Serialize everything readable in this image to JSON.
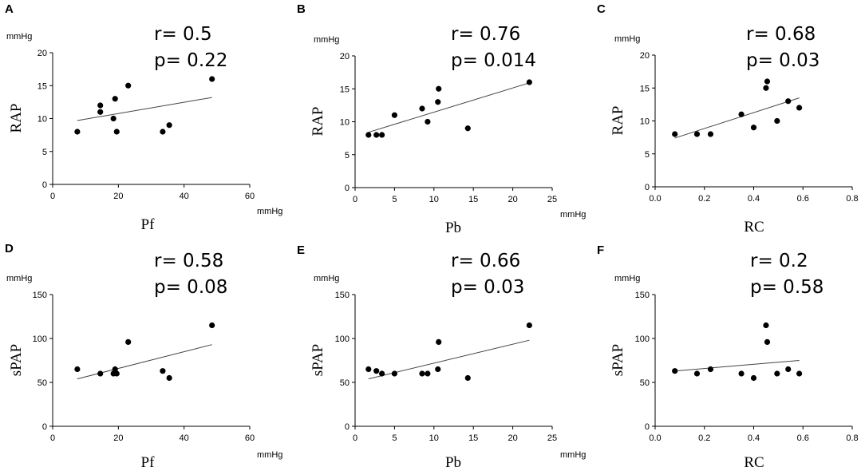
{
  "chart_data": [
    {
      "type": "scatter",
      "panel": "A",
      "yunit": "mmHg",
      "xunit": "mmHg",
      "ylabel": "RAP",
      "xlabel": "Pf",
      "r_text": "r= 0.5",
      "p_text": "p= 0.22",
      "xlim": [
        0,
        60
      ],
      "ylim": [
        0,
        20
      ],
      "xticks": [
        0,
        20,
        40,
        60
      ],
      "yticks": [
        0,
        5,
        10,
        15,
        20
      ],
      "xtick_labels": [
        "0",
        "20",
        "40",
        "60"
      ],
      "ytick_labels": [
        "0",
        "5",
        "10",
        "15",
        "20"
      ],
      "points": [
        [
          7.5,
          8
        ],
        [
          14.5,
          12
        ],
        [
          14.5,
          11
        ],
        [
          18.5,
          10
        ],
        [
          19,
          13
        ],
        [
          19.5,
          8
        ],
        [
          23,
          15
        ],
        [
          33.5,
          8
        ],
        [
          35.5,
          9
        ],
        [
          48.5,
          16
        ]
      ],
      "fit": [
        [
          7.5,
          9.7
        ],
        [
          48.5,
          13.2
        ]
      ]
    },
    {
      "type": "scatter",
      "panel": "B",
      "yunit": "mmHg",
      "xunit": "mmHg",
      "ylabel": "RAP",
      "xlabel": "Pb",
      "r_text": "r= 0.76",
      "p_text": "p= 0.014",
      "xlim": [
        0,
        25
      ],
      "ylim": [
        0,
        20
      ],
      "xticks": [
        0,
        5,
        10,
        15,
        20,
        25
      ],
      "yticks": [
        0,
        5,
        10,
        15,
        20
      ],
      "xtick_labels": [
        "0",
        "5",
        "10",
        "15",
        "20",
        "25"
      ],
      "ytick_labels": [
        "0",
        "5",
        "10",
        "15",
        "20"
      ],
      "points": [
        [
          1.7,
          8
        ],
        [
          2.7,
          8
        ],
        [
          3.4,
          8
        ],
        [
          5,
          11
        ],
        [
          8.5,
          12
        ],
        [
          9.2,
          10
        ],
        [
          10.5,
          13
        ],
        [
          10.6,
          15
        ],
        [
          14.3,
          9
        ],
        [
          22.1,
          16
        ]
      ],
      "fit": [
        [
          1.7,
          8.4
        ],
        [
          22.1,
          15.9
        ]
      ]
    },
    {
      "type": "scatter",
      "panel": "C",
      "yunit": "mmHg",
      "xunit": "",
      "ylabel": "RAP",
      "xlabel": "RC",
      "r_text": "r= 0.68",
      "p_text": "p= 0.03",
      "xlim": [
        0,
        0.8
      ],
      "ylim": [
        0,
        20
      ],
      "xticks": [
        0,
        0.2,
        0.4,
        0.6,
        0.8
      ],
      "yticks": [
        0,
        5,
        10,
        15,
        20
      ],
      "xtick_labels": [
        "0.0",
        "0.2",
        "0.4",
        "0.6",
        "0.8"
      ],
      "ytick_labels": [
        "0",
        "5",
        "10",
        "15",
        "20"
      ],
      "points": [
        [
          0.08,
          8
        ],
        [
          0.17,
          8
        ],
        [
          0.225,
          8
        ],
        [
          0.35,
          11
        ],
        [
          0.4,
          9
        ],
        [
          0.45,
          15
        ],
        [
          0.455,
          16
        ],
        [
          0.495,
          10
        ],
        [
          0.54,
          13
        ],
        [
          0.585,
          12
        ]
      ],
      "fit": [
        [
          0.08,
          7.4
        ],
        [
          0.585,
          13.5
        ]
      ]
    },
    {
      "type": "scatter",
      "panel": "D",
      "yunit": "mmHg",
      "xunit": "mmHg",
      "ylabel": "sPAP",
      "xlabel": "Pf",
      "r_text": "r= 0.58",
      "p_text": "p= 0.08",
      "xlim": [
        0,
        60
      ],
      "ylim": [
        0,
        150
      ],
      "xticks": [
        0,
        20,
        40,
        60
      ],
      "yticks": [
        0,
        50,
        100,
        150
      ],
      "xtick_labels": [
        "0",
        "20",
        "40",
        "60"
      ],
      "ytick_labels": [
        "0",
        "50",
        "100",
        "150"
      ],
      "points": [
        [
          7.5,
          65
        ],
        [
          14.5,
          60
        ],
        [
          18.5,
          60
        ],
        [
          19,
          65
        ],
        [
          19.5,
          60
        ],
        [
          23,
          96
        ],
        [
          33.5,
          63
        ],
        [
          35.5,
          55
        ],
        [
          48.5,
          115
        ]
      ],
      "fit": [
        [
          7.5,
          54
        ],
        [
          48.5,
          93
        ]
      ]
    },
    {
      "type": "scatter",
      "panel": "E",
      "yunit": "mmHg",
      "xunit": "mmHg",
      "ylabel": "sPAP",
      "xlabel": "Pb",
      "r_text": "r= 0.66",
      "p_text": "p= 0.03",
      "xlim": [
        0,
        25
      ],
      "ylim": [
        0,
        150
      ],
      "xticks": [
        0,
        5,
        10,
        15,
        20,
        25
      ],
      "yticks": [
        0,
        50,
        100,
        150
      ],
      "xtick_labels": [
        "0",
        "5",
        "10",
        "15",
        "20",
        "25"
      ],
      "ytick_labels": [
        "0",
        "50",
        "100",
        "150"
      ],
      "points": [
        [
          1.7,
          65
        ],
        [
          2.7,
          63
        ],
        [
          3.4,
          60
        ],
        [
          5,
          60
        ],
        [
          8.5,
          60
        ],
        [
          9.2,
          60
        ],
        [
          10.5,
          65
        ],
        [
          10.6,
          96
        ],
        [
          14.3,
          55
        ],
        [
          22.1,
          115
        ]
      ],
      "fit": [
        [
          1.7,
          54
        ],
        [
          22.1,
          98
        ]
      ]
    },
    {
      "type": "scatter",
      "panel": "F",
      "yunit": "mmHg",
      "xunit": "",
      "ylabel": "sPAP",
      "xlabel": "RC",
      "r_text": "r= 0.2",
      "p_text": "p= 0.58",
      "xlim": [
        0,
        0.8
      ],
      "ylim": [
        0,
        150
      ],
      "xticks": [
        0,
        0.2,
        0.4,
        0.6,
        0.8
      ],
      "yticks": [
        0,
        50,
        100,
        150
      ],
      "xtick_labels": [
        "0.0",
        "0.2",
        "0.4",
        "0.6",
        "0.8"
      ],
      "ytick_labels": [
        "0",
        "50",
        "100",
        "150"
      ],
      "points": [
        [
          0.08,
          63
        ],
        [
          0.17,
          60
        ],
        [
          0.225,
          65
        ],
        [
          0.35,
          60
        ],
        [
          0.4,
          55
        ],
        [
          0.45,
          115
        ],
        [
          0.455,
          96
        ],
        [
          0.495,
          60
        ],
        [
          0.54,
          65
        ],
        [
          0.585,
          60
        ]
      ],
      "fit": [
        [
          0.08,
          63
        ],
        [
          0.585,
          75
        ]
      ]
    }
  ]
}
